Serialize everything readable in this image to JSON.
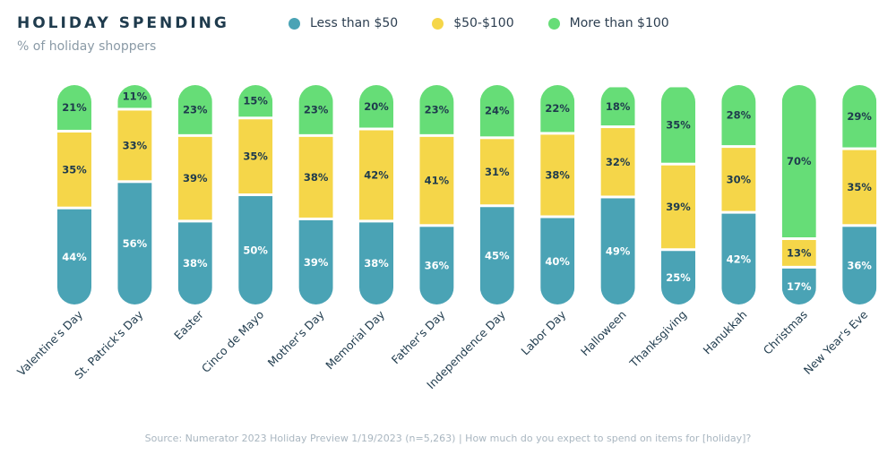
{
  "header": {
    "title": "HOLIDAY SPENDING",
    "subtitle": "% of holiday shoppers"
  },
  "legend": [
    {
      "label": "Less than $50",
      "color": "#4aa3b5"
    },
    {
      "label": "$50-$100",
      "color": "#f5d649"
    },
    {
      "label": "More than $100",
      "color": "#66dd77"
    }
  ],
  "footer": {
    "source": "Source: Numerator 2023 Holiday Preview 1/19/2023 (n=5,263) | How much do you expect to spend on items for [holiday]?"
  },
  "chart_data": {
    "type": "bar",
    "stacked": true,
    "title": "HOLIDAY SPENDING",
    "subtitle": "% of holiday shoppers",
    "categories": [
      "Valentine's Day",
      "St. Patrick's Day",
      "Easter",
      "Cinco de Mayo",
      "Mother's Day",
      "Memorial Day",
      "Father's Day",
      "Independence Day",
      "Labor Day",
      "Halloween",
      "Thanksgiving",
      "Hanukkah",
      "Christmas",
      "New Year's Eve"
    ],
    "series": [
      {
        "name": "Less than $50",
        "color": "#4aa3b5",
        "values": [
          44,
          56,
          38,
          50,
          39,
          38,
          36,
          45,
          40,
          49,
          25,
          42,
          17,
          36
        ]
      },
      {
        "name": "$50-$100",
        "color": "#f5d649",
        "values": [
          35,
          33,
          39,
          35,
          38,
          42,
          41,
          31,
          38,
          32,
          39,
          30,
          13,
          35
        ]
      },
      {
        "name": "More than $100",
        "color": "#66dd77",
        "values": [
          21,
          11,
          23,
          15,
          23,
          20,
          23,
          24,
          22,
          18,
          35,
          28,
          70,
          29
        ]
      }
    ],
    "ylim": [
      0,
      100
    ],
    "data_label_suffix": "%"
  }
}
